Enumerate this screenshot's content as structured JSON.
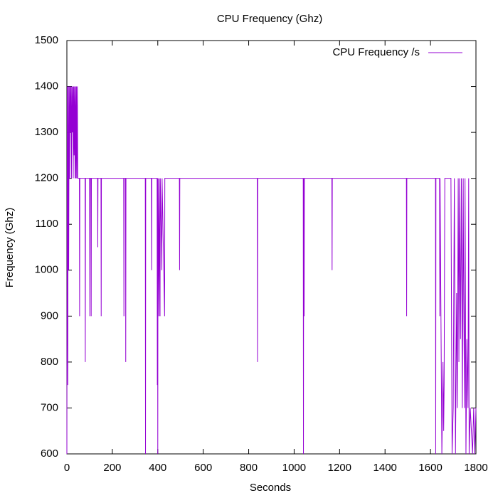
{
  "chart_data": {
    "type": "line",
    "title": "CPU Frequency (Ghz)",
    "x_label": "Seconds",
    "y_label": "Frequency (Ghz)",
    "x": [
      0,
      2,
      4,
      6,
      8,
      10,
      12,
      14,
      16,
      18,
      20,
      22,
      24,
      26,
      28,
      30,
      32,
      34,
      36,
      38,
      40,
      42,
      44,
      46,
      48,
      55,
      56,
      57,
      80,
      81,
      82,
      100,
      101,
      102,
      106,
      107,
      108,
      135,
      136,
      137,
      150,
      151,
      152,
      250,
      251,
      252,
      258,
      259,
      260,
      345,
      346,
      347,
      372,
      373,
      374,
      397,
      398,
      399,
      400,
      401,
      405,
      406,
      410,
      411,
      418,
      419,
      430,
      431,
      495,
      496,
      497,
      838,
      839,
      840,
      1040,
      1041,
      1042,
      1044,
      1045,
      1166,
      1167,
      1168,
      1494,
      1495,
      1496,
      1622,
      1623,
      1624,
      1640,
      1641,
      1642,
      1650,
      1655,
      1658,
      1660,
      1663,
      1690,
      1695,
      1700,
      1705,
      1710,
      1715,
      1718,
      1722,
      1725,
      1728,
      1732,
      1736,
      1740,
      1744,
      1746,
      1750,
      1752,
      1756,
      1760,
      1765,
      1768,
      1770,
      1775,
      1780,
      1785,
      1790,
      1795,
      1800
    ],
    "series": [
      {
        "name": "CPU Frequency /s",
        "color": "#9400d3",
        "values": [
          600,
          1400,
          750,
          1400,
          1000,
          1400,
          1200,
          1400,
          1300,
          1400,
          1200,
          1400,
          1300,
          1400,
          1200,
          1400,
          1250,
          1400,
          1200,
          1400,
          1200,
          1400,
          1200,
          1400,
          1200,
          1200,
          900,
          1200,
          1200,
          800,
          1200,
          1200,
          900,
          1200,
          1200,
          900,
          1200,
          1200,
          1050,
          1200,
          1200,
          900,
          1200,
          1200,
          900,
          1200,
          1200,
          800,
          1200,
          1200,
          600,
          1200,
          1200,
          1000,
          1200,
          1200,
          750,
          1200,
          600,
          1200,
          900,
          1200,
          900,
          1200,
          1000,
          1200,
          900,
          1200,
          1200,
          1000,
          1200,
          1200,
          800,
          1200,
          1200,
          600,
          1200,
          900,
          1200,
          1200,
          1000,
          1200,
          1200,
          900,
          1200,
          1200,
          600,
          1200,
          1200,
          900,
          1200,
          600,
          800,
          650,
          750,
          1200,
          1200,
          600,
          700,
          1200,
          600,
          950,
          700,
          1200,
          800,
          1200,
          850,
          1200,
          700,
          1200,
          950,
          700,
          1200,
          600,
          850,
          700,
          1200,
          600,
          700,
          650,
          600,
          700,
          600,
          700
        ]
      }
    ],
    "xlim": [
      0,
      1800
    ],
    "xticks": [
      0,
      200,
      400,
      600,
      800,
      1000,
      1200,
      1400,
      1600,
      1800
    ],
    "ylim": [
      600,
      1500
    ],
    "yticks": [
      600,
      700,
      800,
      900,
      1000,
      1100,
      1200,
      1300,
      1400,
      1500
    ],
    "legend": "top-right"
  }
}
